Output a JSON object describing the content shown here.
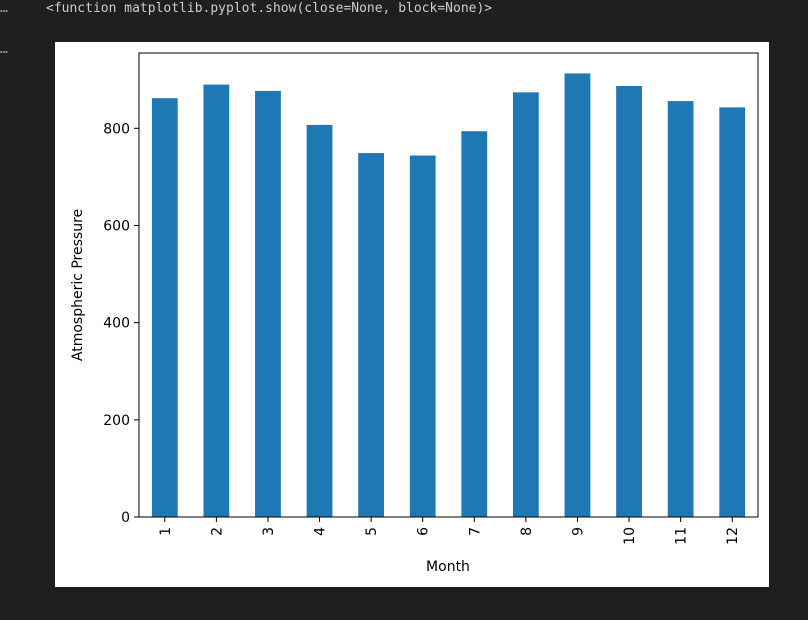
{
  "output": {
    "cell_marker_1": "…",
    "cell_marker_2": "…",
    "text": "<function matplotlib.pyplot.show(close=None, block=None)>"
  },
  "chart_data": {
    "type": "bar",
    "categories": [
      "1",
      "2",
      "3",
      "4",
      "5",
      "6",
      "7",
      "8",
      "9",
      "10",
      "11",
      "12"
    ],
    "values": [
      862,
      890,
      877,
      807,
      749,
      744,
      794,
      874,
      913,
      887,
      856,
      843
    ],
    "xlabel": "Month",
    "ylabel": "Atmospheric Pressure",
    "yticks": [
      0,
      200,
      400,
      600,
      800
    ],
    "ylim": [
      0,
      955
    ],
    "grid": false,
    "bar_color": "#1f77b4"
  }
}
